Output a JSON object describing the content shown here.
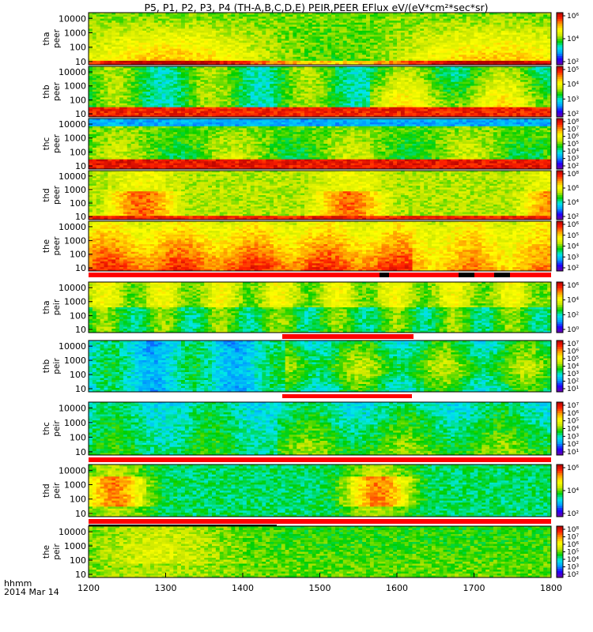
{
  "chart_data": {
    "type": "heatmap",
    "title": "P5, P1, P2, P3, P4 (TH-A,B,C,D,E) PEIR,PEER EFlux eV/(eV*cm²*sec*sr)",
    "xlabel_lines": [
      "hhmm",
      "2014 Mar 14"
    ],
    "x_ticks": [
      "1200",
      "1300",
      "1400",
      "1500",
      "1600",
      "1700",
      "1800"
    ],
    "xlim": [
      1200,
      1800
    ],
    "y_scale": "log",
    "panels": [
      {
        "label": [
          "tha",
          "peer"
        ],
        "ylim": [
          6,
          25000
        ],
        "y_ticks": [
          "10",
          "100",
          "1000",
          "10000"
        ],
        "cbar_ticks": [
          "10²",
          "10⁴",
          "10⁶"
        ],
        "cbar_range": [
          1,
          7
        ]
      },
      {
        "label": [
          "thb",
          "peer"
        ],
        "ylim": [
          6,
          25000
        ],
        "y_ticks": [
          "10",
          "100",
          "1000",
          "10000"
        ],
        "cbar_ticks": [
          "10²",
          "10³",
          "10⁴",
          "10⁵"
        ],
        "cbar_range": [
          1,
          6
        ]
      },
      {
        "label": [
          "thc",
          "peer"
        ],
        "ylim": [
          6,
          25000
        ],
        "y_ticks": [
          "10",
          "100",
          "1000",
          "10000"
        ],
        "cbar_ticks": [
          "10²",
          "10³",
          "10⁴",
          "10⁵",
          "10⁶",
          "10⁷",
          "10⁸"
        ],
        "cbar_range": [
          1,
          8
        ]
      },
      {
        "label": [
          "thd",
          "peer"
        ],
        "ylim": [
          6,
          25000
        ],
        "y_ticks": [
          "10",
          "100",
          "1000",
          "10000"
        ],
        "cbar_ticks": [
          "10²",
          "10⁴",
          "10⁶",
          "10⁸"
        ],
        "cbar_range": [
          1,
          8
        ]
      },
      {
        "label": [
          "the",
          "peer"
        ],
        "ylim": [
          6,
          25000
        ],
        "y_ticks": [
          "10",
          "100",
          "1000",
          "10000"
        ],
        "cbar_ticks": [
          "10²",
          "10³",
          "10⁴",
          "10⁵",
          "10⁶"
        ],
        "cbar_range": [
          1,
          7
        ]
      },
      {
        "label": [
          "tha",
          "peir"
        ],
        "ylim": [
          6,
          25000
        ],
        "y_ticks": [
          "10",
          "100",
          "1000",
          "10000"
        ],
        "cbar_ticks": [
          "10⁰",
          "10²",
          "10⁴",
          "10⁶"
        ],
        "cbar_range": [
          0,
          7
        ]
      },
      {
        "label": [
          "thb",
          "peir"
        ],
        "ylim": [
          6,
          25000
        ],
        "y_ticks": [
          "10",
          "100",
          "1000",
          "10000"
        ],
        "cbar_ticks": [
          "10¹",
          "10²",
          "10³",
          "10⁴",
          "10⁵",
          "10⁶",
          "10⁷"
        ],
        "cbar_range": [
          1,
          7
        ]
      },
      {
        "label": [
          "thc",
          "peir"
        ],
        "ylim": [
          6,
          25000
        ],
        "y_ticks": [
          "10",
          "100",
          "1000",
          "10000"
        ],
        "cbar_ticks": [
          "10¹",
          "10²",
          "10³",
          "10⁴",
          "10⁵",
          "10⁶",
          "10⁷"
        ],
        "cbar_range": [
          1,
          7
        ]
      },
      {
        "label": [
          "thd",
          "peir"
        ],
        "ylim": [
          6,
          25000
        ],
        "y_ticks": [
          "10",
          "100",
          "1000",
          "10000"
        ],
        "cbar_ticks": [
          "10²",
          "10⁴",
          "10⁶"
        ],
        "cbar_range": [
          1,
          7
        ]
      },
      {
        "label": [
          "the",
          "peir"
        ],
        "ylim": [
          6,
          25000
        ],
        "y_ticks": [
          "10",
          "100",
          "1000",
          "10000"
        ],
        "cbar_ticks": [
          "10²",
          "10³",
          "10⁴",
          "10⁵",
          "10⁶",
          "10⁷",
          "10⁸"
        ],
        "cbar_range": [
          1,
          8
        ]
      }
    ],
    "colormap": [
      "#6a00a8",
      "#1d00ff",
      "#00a0ff",
      "#00e8e8",
      "#00d000",
      "#c8e600",
      "#ffff00",
      "#ffa000",
      "#ff2000",
      "#b00000"
    ],
    "bar_colors": {
      "red": "#ff0000",
      "black": "#000000"
    }
  }
}
